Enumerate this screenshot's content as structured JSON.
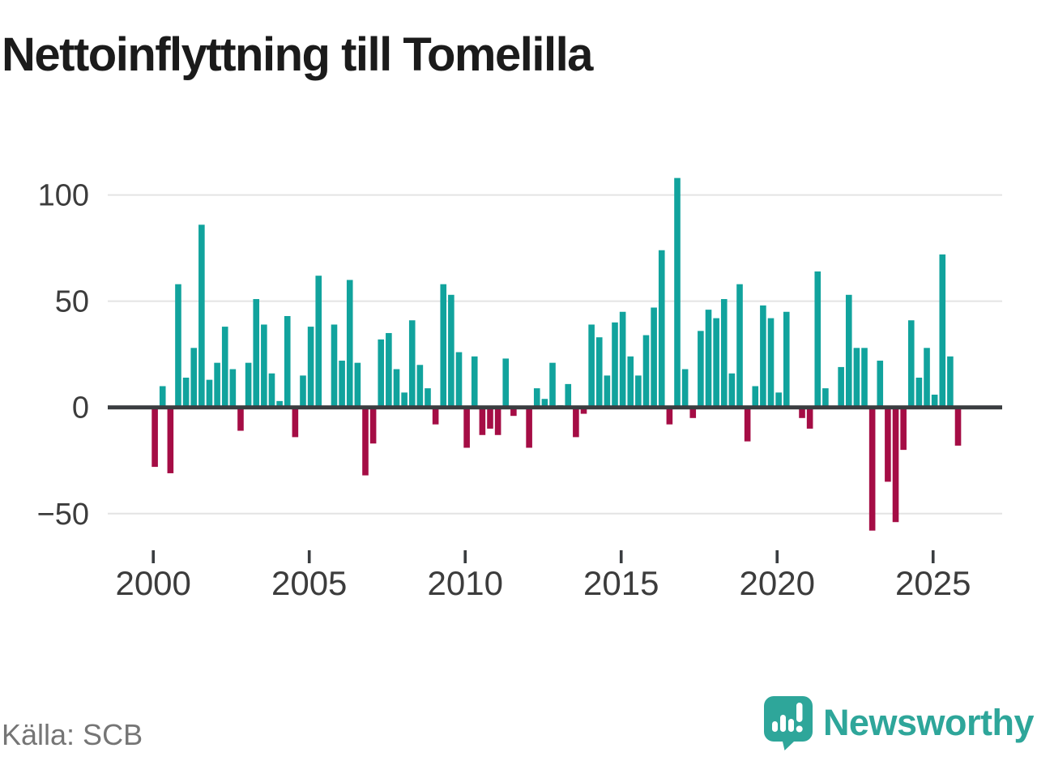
{
  "title": "Nettoinflyttning till Tomelilla",
  "source": "Källa: SCB",
  "logo": {
    "text": "Newsworthy"
  },
  "colors": {
    "positive": "#11a39d",
    "negative": "#a50d45",
    "axis": "#3a3d40",
    "grid": "#e4e4e4",
    "tick_label": "#3c3c3c",
    "source_text": "#757575",
    "brand": "#2ea69a"
  },
  "chart_data": {
    "type": "bar",
    "title": "Nettoinflyttning till Tomelilla",
    "x_unit": "quarter",
    "period": "2000 Q1 – 2025 Q4",
    "grid": true,
    "legend": "none",
    "ylim": [
      -60,
      112
    ],
    "y_ticks": [
      100,
      50,
      0,
      -50
    ],
    "y_tick_labels": [
      "100",
      "50",
      "0",
      "−50"
    ],
    "x_tick_years": [
      2000,
      2005,
      2010,
      2015,
      2020,
      2025
    ],
    "x_tick_labels": [
      "2000",
      "2005",
      "2010",
      "2015",
      "2020",
      "2025"
    ],
    "series_by_year": [
      {
        "year": 2000,
        "values": [
          -28,
          10,
          -31,
          58
        ]
      },
      {
        "year": 2001,
        "values": [
          14,
          28,
          86,
          13
        ]
      },
      {
        "year": 2002,
        "values": [
          21,
          38,
          18,
          -11
        ]
      },
      {
        "year": 2003,
        "values": [
          21,
          51,
          39,
          16
        ]
      },
      {
        "year": 2004,
        "values": [
          3,
          43,
          -14,
          15
        ]
      },
      {
        "year": 2005,
        "values": [
          38,
          62,
          0,
          39
        ]
      },
      {
        "year": 2006,
        "values": [
          22,
          60,
          21,
          -32
        ]
      },
      {
        "year": 2007,
        "values": [
          -17,
          32,
          35,
          18
        ]
      },
      {
        "year": 2008,
        "values": [
          7,
          41,
          20,
          9
        ]
      },
      {
        "year": 2009,
        "values": [
          -8,
          58,
          53,
          26
        ]
      },
      {
        "year": 2010,
        "values": [
          -19,
          24,
          -13,
          -10
        ]
      },
      {
        "year": 2011,
        "values": [
          -13,
          23,
          -4,
          0
        ]
      },
      {
        "year": 2012,
        "values": [
          -19,
          9,
          4,
          21
        ]
      },
      {
        "year": 2013,
        "values": [
          1,
          11,
          -14,
          -3
        ]
      },
      {
        "year": 2014,
        "values": [
          39,
          33,
          15,
          40
        ]
      },
      {
        "year": 2015,
        "values": [
          45,
          24,
          15,
          34
        ]
      },
      {
        "year": 2016,
        "values": [
          47,
          74,
          -8,
          108
        ]
      },
      {
        "year": 2017,
        "values": [
          18,
          -5,
          36,
          46
        ]
      },
      {
        "year": 2018,
        "values": [
          42,
          51,
          16,
          58
        ]
      },
      {
        "year": 2019,
        "values": [
          -16,
          10,
          48,
          42
        ]
      },
      {
        "year": 2020,
        "values": [
          7,
          45,
          0,
          -5
        ]
      },
      {
        "year": 2021,
        "values": [
          -10,
          64,
          9,
          0
        ]
      },
      {
        "year": 2022,
        "values": [
          19,
          53,
          28,
          28
        ]
      },
      {
        "year": 2023,
        "values": [
          -58,
          22,
          -35,
          -54
        ]
      },
      {
        "year": 2024,
        "values": [
          -20,
          41,
          14,
          28
        ]
      },
      {
        "year": 2025,
        "values": [
          6,
          72,
          24,
          -18
        ]
      }
    ]
  }
}
